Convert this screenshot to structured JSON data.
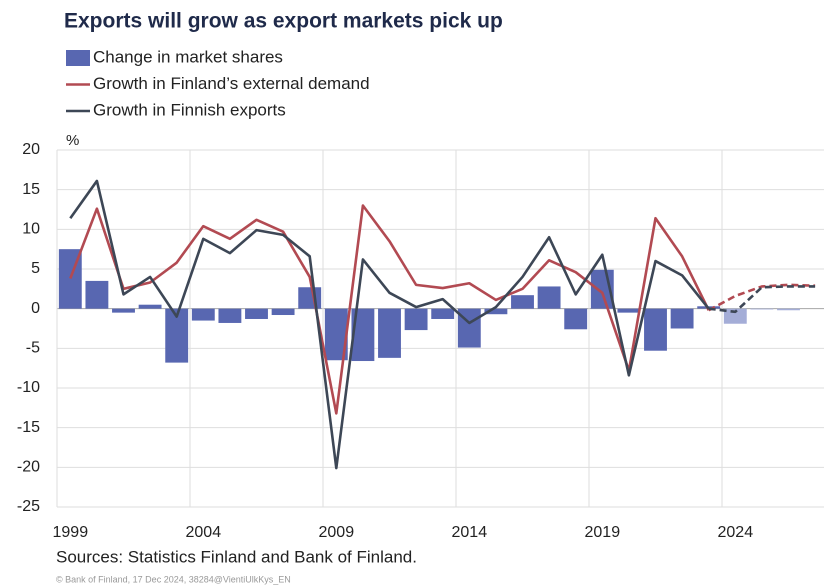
{
  "chart_data": {
    "type": "bar-line",
    "title": "Exports will grow as export markets pick up",
    "y_unit": "%",
    "source": "Sources: Statistics Finland and Bank of Finland.",
    "copyright": "© Bank of Finland, 17 Dec 2024, 38284@VientiUlkKys_EN",
    "categories": [
      "1999",
      null,
      null,
      null,
      null,
      "2004",
      null,
      null,
      null,
      null,
      "2009",
      null,
      null,
      null,
      null,
      "2014",
      null,
      null,
      null,
      null,
      "2019",
      null,
      null,
      null,
      null,
      "2024",
      null,
      null,
      null
    ],
    "forecast_from_category": "2024",
    "ylim": [
      -25,
      20
    ],
    "yticks": [
      20,
      15,
      10,
      5,
      0,
      -5,
      -10,
      -15,
      -20,
      -25
    ],
    "grid": true,
    "series": [
      {
        "name": "Change in market shares",
        "kind": "bar",
        "color": "#5867b1",
        "forecast_color": "#a4add7",
        "values": [
          7.5,
          3.5,
          -0.5,
          0.5,
          -6.8,
          -1.5,
          -1.8,
          -1.3,
          -0.8,
          2.7,
          -6.5,
          -6.6,
          -6.2,
          -2.7,
          -1.3,
          -4.9,
          -0.7,
          1.7,
          2.8,
          -2.6,
          4.9,
          -0.5,
          -5.3,
          -2.5,
          0.3,
          -1.9,
          -0.1,
          -0.2,
          null
        ]
      },
      {
        "name": "Growth in Finland’s external demand",
        "kind": "line",
        "color": "#b24a52",
        "values": [
          3.8,
          12.6,
          2.5,
          3.3,
          5.8,
          10.4,
          8.8,
          11.2,
          9.7,
          4.0,
          -13.2,
          13.0,
          8.5,
          3.0,
          2.6,
          3.2,
          1.1,
          2.5,
          6.1,
          4.6,
          2.0,
          -7.8,
          11.4,
          6.6,
          -0.2,
          1.6,
          2.8,
          3.0,
          2.9
        ]
      },
      {
        "name": "Growth in Finnish exports",
        "kind": "line",
        "color": "#3d4756",
        "values": [
          11.4,
          16.1,
          1.8,
          4.0,
          -1.0,
          8.8,
          7.0,
          9.9,
          9.3,
          6.6,
          -20.1,
          6.2,
          2.0,
          0.2,
          1.2,
          -1.8,
          0.2,
          4.0,
          9.0,
          1.8,
          6.8,
          -8.4,
          6.0,
          4.2,
          0.0,
          -0.4,
          2.7,
          2.8,
          2.8
        ]
      }
    ]
  }
}
